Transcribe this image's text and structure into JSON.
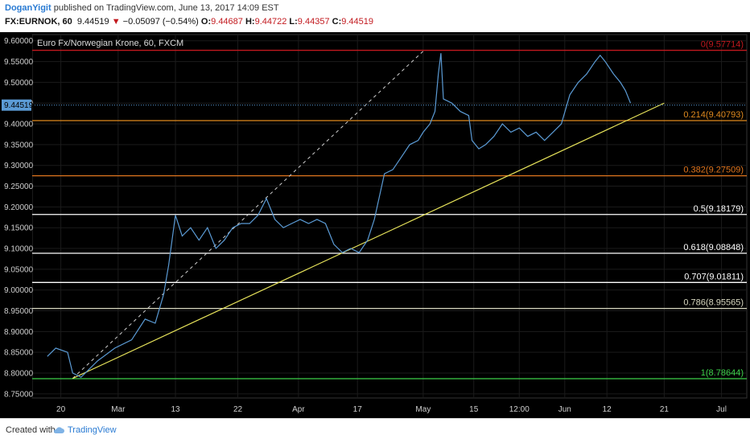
{
  "header": {
    "author": "DoganYigit",
    "published": "published on TradingView.com, June 13, 2017 14:09 EST",
    "symbol": "FX:EURNOK, 60",
    "last": "9.44519",
    "change": "−0.05097 (−0.54%)",
    "o_label": "O:",
    "o_value": "9.44687",
    "h_label": "H:",
    "h_value": "9.44722",
    "l_label": "L:",
    "l_value": "9.44357",
    "c_label": "C:",
    "c_value": "9.44519"
  },
  "footer": {
    "created_with": "Created with",
    "brand": "TradingView"
  },
  "colors": {
    "background": "#000000",
    "price_line": "#5b9bd5",
    "trend_line": "#e6e25a",
    "dashed_line": "#cfcfcf",
    "accent_red": "#c2191e",
    "brand": "#2a7bd3"
  },
  "chart_data": {
    "type": "line",
    "title": "Euro Fx/Norwegian Krone, 60, FXCM",
    "ylim": [
      8.74,
      9.615
    ],
    "y_ticks": [
      "9.60000",
      "9.55000",
      "9.50000",
      "9.45000",
      "9.40000",
      "9.35000",
      "9.30000",
      "9.25000",
      "9.20000",
      "9.15000",
      "9.10000",
      "9.05000",
      "9.00000",
      "8.95000",
      "8.90000",
      "8.85000",
      "8.80000",
      "8.75000"
    ],
    "x_ticks": [
      "20",
      "Mar",
      "13",
      "22",
      "Apr",
      "17",
      "May",
      "15",
      "12:00",
      "Jun",
      "12",
      "21",
      "Jul"
    ],
    "x_tick_values": [
      0.8,
      4.2,
      7.6,
      11.3,
      14.9,
      18.4,
      22.3,
      25.3,
      28.0,
      30.7,
      33.2,
      36.6,
      40.0
    ],
    "xlim": [
      -0.9,
      41.5
    ],
    "current_price": "9.44519",
    "series": [
      {
        "values": [
          [
            0,
            8.84
          ],
          [
            0.5,
            8.86
          ],
          [
            1.2,
            8.85
          ],
          [
            1.5,
            8.8
          ],
          [
            2.0,
            8.79
          ],
          [
            3.0,
            8.83
          ],
          [
            4.0,
            8.86
          ],
          [
            5.0,
            8.88
          ],
          [
            5.8,
            8.93
          ],
          [
            6.4,
            8.92
          ],
          [
            6.9,
            8.99
          ],
          [
            7.2,
            9.06
          ],
          [
            7.6,
            9.18
          ],
          [
            8.0,
            9.13
          ],
          [
            8.5,
            9.15
          ],
          [
            9.0,
            9.12
          ],
          [
            9.5,
            9.15
          ],
          [
            10.0,
            9.1
          ],
          [
            10.5,
            9.12
          ],
          [
            11.0,
            9.15
          ],
          [
            11.5,
            9.16
          ],
          [
            12.0,
            9.16
          ],
          [
            12.5,
            9.18
          ],
          [
            13.0,
            9.22
          ],
          [
            13.5,
            9.17
          ],
          [
            14.0,
            9.15
          ],
          [
            14.5,
            9.16
          ],
          [
            15.0,
            9.17
          ],
          [
            15.5,
            9.16
          ],
          [
            16.0,
            9.17
          ],
          [
            16.5,
            9.16
          ],
          [
            17.0,
            9.11
          ],
          [
            17.5,
            9.09
          ],
          [
            18.0,
            9.1
          ],
          [
            18.5,
            9.09
          ],
          [
            19.0,
            9.12
          ],
          [
            19.4,
            9.17
          ],
          [
            20.0,
            9.28
          ],
          [
            20.5,
            9.29
          ],
          [
            21.0,
            9.32
          ],
          [
            21.5,
            9.35
          ],
          [
            22.0,
            9.36
          ],
          [
            22.3,
            9.38
          ],
          [
            22.7,
            9.4
          ],
          [
            23.0,
            9.43
          ],
          [
            23.2,
            9.52
          ],
          [
            23.35,
            9.57
          ],
          [
            23.5,
            9.46
          ],
          [
            24.0,
            9.45
          ],
          [
            24.5,
            9.43
          ],
          [
            25.0,
            9.42
          ],
          [
            25.2,
            9.36
          ],
          [
            25.6,
            9.34
          ],
          [
            26.0,
            9.35
          ],
          [
            26.5,
            9.37
          ],
          [
            27.0,
            9.4
          ],
          [
            27.5,
            9.38
          ],
          [
            28.0,
            9.39
          ],
          [
            28.5,
            9.37
          ],
          [
            29.0,
            9.38
          ],
          [
            29.5,
            9.36
          ],
          [
            30.0,
            9.38
          ],
          [
            30.5,
            9.4
          ],
          [
            31.0,
            9.47
          ],
          [
            31.5,
            9.5
          ],
          [
            32.0,
            9.52
          ],
          [
            32.5,
            9.55
          ],
          [
            32.8,
            9.565
          ],
          [
            33.1,
            9.55
          ],
          [
            33.6,
            9.52
          ],
          [
            34.0,
            9.5
          ],
          [
            34.3,
            9.48
          ],
          [
            34.6,
            9.45
          ]
        ]
      }
    ],
    "annotations": {
      "fib_levels": [
        {
          "ratio": "0",
          "value": 9.57714,
          "label": "0(9.57714)",
          "color": "#c2191e"
        },
        {
          "ratio": "0.214",
          "value": 9.40793,
          "label": "0.214(9.40793)",
          "color": "#e08a1e"
        },
        {
          "ratio": "0.382",
          "value": 9.27509,
          "label": "0.382(9.27509)",
          "color": "#e0751e"
        },
        {
          "ratio": "0.5",
          "value": 9.18179,
          "label": "0.5(9.18179)",
          "color": "#ffffff"
        },
        {
          "ratio": "0.618",
          "value": 9.08848,
          "label": "0.618(9.08848)",
          "color": "#ffffff"
        },
        {
          "ratio": "0.707",
          "value": 9.01811,
          "label": "0.707(9.01811)",
          "color": "#ffffff"
        },
        {
          "ratio": "0.786",
          "value": 8.95565,
          "label": "0.786(8.95565)",
          "color": "#d8d8c0"
        },
        {
          "ratio": "1",
          "value": 8.78644,
          "label": "1(8.78644)",
          "color": "#3cd04a"
        }
      ],
      "trend_line": [
        [
          1.5,
          8.787
        ],
        [
          36.6,
          9.45
        ]
      ],
      "dashed_line": [
        [
          1.5,
          8.787
        ],
        [
          22.3,
          9.575
        ]
      ]
    }
  }
}
